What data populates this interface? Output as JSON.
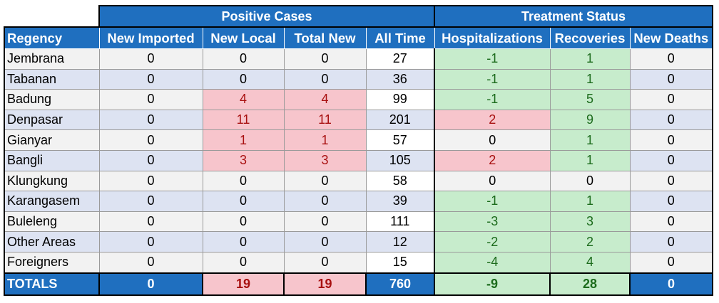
{
  "header": {
    "positive_cases": "Positive Cases",
    "treatment_status": "Treatment Status"
  },
  "columns": [
    "Regency",
    "New Imported",
    "New Local",
    "Total New",
    "All Time",
    "Hospitalizations",
    "Recoveries",
    "New Deaths"
  ],
  "rows": [
    {
      "regency": "Jembrana",
      "new_imported": "0",
      "new_local": "0",
      "total_new": "0",
      "all_time": "27",
      "hospitalizations": "-1",
      "recoveries": "1",
      "new_deaths": "0"
    },
    {
      "regency": "Tabanan",
      "new_imported": "0",
      "new_local": "0",
      "total_new": "0",
      "all_time": "36",
      "hospitalizations": "-1",
      "recoveries": "1",
      "new_deaths": "0"
    },
    {
      "regency": "Badung",
      "new_imported": "0",
      "new_local": "4",
      "total_new": "4",
      "all_time": "99",
      "hospitalizations": "-1",
      "recoveries": "5",
      "new_deaths": "0"
    },
    {
      "regency": "Denpasar",
      "new_imported": "0",
      "new_local": "11",
      "total_new": "11",
      "all_time": "201",
      "hospitalizations": "2",
      "recoveries": "9",
      "new_deaths": "0"
    },
    {
      "regency": "Gianyar",
      "new_imported": "0",
      "new_local": "1",
      "total_new": "1",
      "all_time": "57",
      "hospitalizations": "0",
      "recoveries": "1",
      "new_deaths": "0"
    },
    {
      "regency": "Bangli",
      "new_imported": "0",
      "new_local": "3",
      "total_new": "3",
      "all_time": "105",
      "hospitalizations": "2",
      "recoveries": "1",
      "new_deaths": "0"
    },
    {
      "regency": "Klungkung",
      "new_imported": "0",
      "new_local": "0",
      "total_new": "0",
      "all_time": "58",
      "hospitalizations": "0",
      "recoveries": "0",
      "new_deaths": "0"
    },
    {
      "regency": "Karangasem",
      "new_imported": "0",
      "new_local": "0",
      "total_new": "0",
      "all_time": "39",
      "hospitalizations": "-1",
      "recoveries": "1",
      "new_deaths": "0"
    },
    {
      "regency": "Buleleng",
      "new_imported": "0",
      "new_local": "0",
      "total_new": "0",
      "all_time": "111",
      "hospitalizations": "-3",
      "recoveries": "3",
      "new_deaths": "0"
    },
    {
      "regency": "Other Areas",
      "new_imported": "0",
      "new_local": "0",
      "total_new": "0",
      "all_time": "12",
      "hospitalizations": "-2",
      "recoveries": "2",
      "new_deaths": "0"
    },
    {
      "regency": "Foreigners",
      "new_imported": "0",
      "new_local": "0",
      "total_new": "0",
      "all_time": "15",
      "hospitalizations": "-4",
      "recoveries": "4",
      "new_deaths": "0"
    }
  ],
  "totals": {
    "label": "TOTALS",
    "new_imported": "0",
    "new_local": "19",
    "total_new": "19",
    "all_time": "760",
    "hospitalizations": "-9",
    "recoveries": "28",
    "new_deaths": "0"
  },
  "colors": {
    "header_blue": "#1f6fbf",
    "highlight_red": "#f7c5cc",
    "text_red": "#a81010",
    "highlight_green": "#c7eccc",
    "text_green": "#1c6b1c",
    "row_alt": "#dde3f2",
    "row_base": "#f2f2f2"
  }
}
